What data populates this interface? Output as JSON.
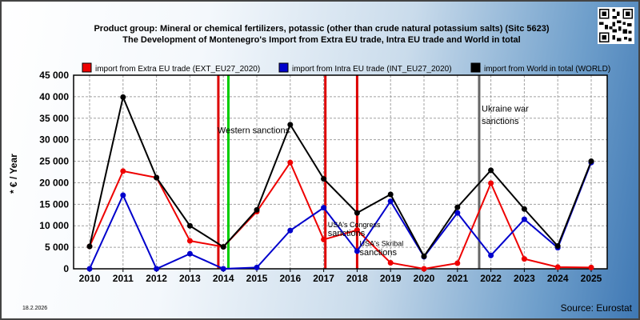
{
  "header": {
    "title_line1": "Product group: Mineral or chemical fertilizers, potassic (other than crude natural potassium salts) (Sitc 5623)",
    "title_line2": "The Development of Montenegro's Import from Extra EU trade, Intra EU trade and World in total"
  },
  "footer": {
    "date": "18.2.2026",
    "source": "Source: Eurostat"
  },
  "chart_data": {
    "type": "line",
    "ylabel": "* € / Year",
    "ylim": [
      0,
      45000
    ],
    "yticks": [
      "0",
      "5 000",
      "10 000",
      "15 000",
      "20 000",
      "25 000",
      "30 000",
      "35 000",
      "40 000",
      "45 000"
    ],
    "categories": [
      "2010",
      "2011",
      "2012",
      "2013",
      "2014",
      "2015",
      "2016",
      "2017",
      "2018",
      "2019",
      "2020",
      "2021",
      "2022",
      "2023",
      "2024",
      "2025"
    ],
    "grid": true,
    "legend_position": "top",
    "series": [
      {
        "name": "import from Extra EU trade (EXT_EU27_2020)",
        "color": "#ee0000",
        "values": [
          5200,
          22700,
          21200,
          6500,
          5100,
          13300,
          24700,
          6800,
          9000,
          1400,
          0,
          1300,
          19900,
          2300,
          400,
          300
        ]
      },
      {
        "name": "import from Intra EU trade (INT_EU27_2020)",
        "color": "#0000cc",
        "values": [
          0,
          17100,
          0,
          3500,
          0,
          300,
          8900,
          14200,
          4100,
          15700,
          2800,
          13000,
          3100,
          11500,
          4900,
          24700
        ]
      },
      {
        "name": "import from World in total (WORLD)",
        "color": "#000000",
        "values": [
          5200,
          39900,
          21200,
          10000,
          5100,
          13700,
          33500,
          20900,
          13000,
          17300,
          2900,
          14300,
          22900,
          13900,
          5300,
          25000
        ]
      }
    ],
    "events": [
      {
        "x": 2013.85,
        "color": "#dd0000",
        "label": ""
      },
      {
        "x": 2014.15,
        "color": "#00cc00",
        "label": ""
      },
      {
        "x": 2017.05,
        "color": "#dd0000",
        "label": ""
      },
      {
        "x": 2018.0,
        "color": "#dd0000",
        "label": ""
      },
      {
        "x": 2021.65,
        "color": "#666666",
        "label": ""
      }
    ],
    "annotations": [
      {
        "text": "Western sanctions",
        "x": 2013.8,
        "y": 31500
      },
      {
        "text": "USA's Congress",
        "x": 2017.1,
        "y": 9700
      },
      {
        "text": "sanctions",
        "x": 2017.1,
        "y": 7600
      },
      {
        "text": "USA's Skribal",
        "x": 2018.05,
        "y": 5300
      },
      {
        "text": "sanctions",
        "x": 2018.05,
        "y": 3200
      },
      {
        "text": "Ukraine war",
        "x": 2021.7,
        "y": 36500
      },
      {
        "text": "sanctions",
        "x": 2021.7,
        "y": 33700
      }
    ]
  }
}
